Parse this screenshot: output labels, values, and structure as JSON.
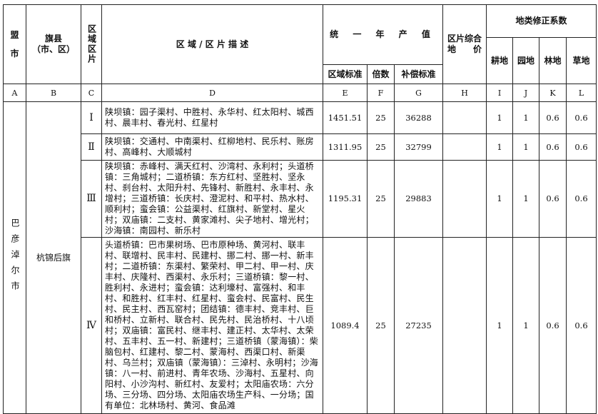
{
  "header": {
    "league_city": "盟\n市",
    "banner_county": "旗县",
    "banner_county_sub": "（市、区）",
    "zone": "区域区片",
    "description": "区 域 / 区 片 描 述",
    "annual_output": "统 一 年 产 值",
    "zone_standard": "区域标准",
    "multiple": "倍数",
    "compensation_standard": "补偿标准",
    "composite_price_line1": "区片综合",
    "composite_price_line2": "地　　价",
    "land_correction": "地类修正系数",
    "cultivated": "耕地",
    "garden": "园地",
    "forest": "林地",
    "grass": "草地"
  },
  "letters": [
    "A",
    "B",
    "C",
    "D",
    "E",
    "F",
    "G",
    "H",
    "I",
    "J",
    "K",
    "L"
  ],
  "league_city_value": "巴彦淖尔市",
  "banner_county_value": "杭锦后旗",
  "rows": [
    {
      "zone": "Ⅰ",
      "description": "陕坝镇：园子渠村、中胜村、永华村、红太阳村、城西村、晨丰村、春光村、红星村",
      "zone_standard": "1451.51",
      "multiple": "25",
      "compensation": "36288",
      "composite": "",
      "cultivated": "1",
      "garden": "1",
      "forest": "0.6",
      "grass": "0.6"
    },
    {
      "zone": "Ⅱ",
      "description": "陕坝镇：交通村、中南渠村、红柳地村、民乐村、账房村、高峰村、大顺城村",
      "zone_standard": "1311.95",
      "multiple": "25",
      "compensation": "32799",
      "composite": "",
      "cultivated": "1",
      "garden": "1",
      "forest": "0.6",
      "grass": "0.6"
    },
    {
      "zone": "Ⅲ",
      "description": "陕坝镇：赤峰村、满天红村、沙湾村、永利村；头道桥镇：三角城村；二道桥镇：东方红村、坚胜村、坚永村、刹台村、太阳升村、先锋村、新胜村、永丰村、永增村；三道桥镇：长庆村、澄泥村、和平村、热水村、顺利村；蛮会镇：公益渠村、红旗村、新堂村、星火村；双庙镇：二支村、黄家滩村、尖子地村、增光村；沙海镇：南园村、新乐村",
      "zone_standard": "1195.31",
      "multiple": "25",
      "compensation": "29883",
      "composite": "",
      "cultivated": "1",
      "garden": "1",
      "forest": "0.6",
      "grass": "0.6"
    },
    {
      "zone": "Ⅳ",
      "description": "头道桥镇：巴市果树场、巴市原种场、黄河村、联丰村、联增村、民丰村、民建村、挪二村、挪一村、新丰村；二道桥镇：东渠村、繁荣村、甲二村、甲一村、庆丰村、庆隆村、西渠村、永乐村；三道桥镇：黎一村、胜利村、永进村；蛮会镇：达利壕村、富强村、和丰村、和胜村、红丰村、红星村、蛮会村、民富村、民生村、民主村、西瓦窑村；团结镇：德丰村、竞丰村、巨和桥村、立新村、联合村、民先村、民治桥村、十八顷村；双庙镇：富民村、继丰村、建正村、太华村、太荣村、五丰村、五一村、新建村；三道桥镇（蒙海镇）：柴脑包村、红建村、黎二村、蒙海村、西渠口村、新渠村、乌兰村；双庙镇（蒙海镇）：三淖村、永明村；沙海镇：八一村、前进村、青年农场、沙海村、五星村、向阳村、小沙沟村、新红村、友爱村；太阳庙农场：六分场、三分场、四分场、太阳庙农场生产科、一分场；国有单位：北林场村、黄河、食品滩",
      "zone_standard": "1089.4",
      "multiple": "25",
      "compensation": "27235",
      "composite": "",
      "cultivated": "1",
      "garden": "1",
      "forest": "0.6",
      "grass": "0.6"
    }
  ]
}
